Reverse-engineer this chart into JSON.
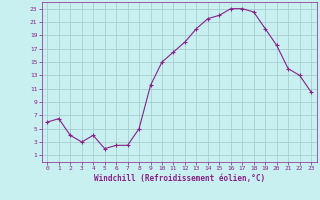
{
  "x": [
    0,
    1,
    2,
    3,
    4,
    5,
    6,
    7,
    8,
    9,
    10,
    11,
    12,
    13,
    14,
    15,
    16,
    17,
    18,
    19,
    20,
    21,
    22,
    23
  ],
  "y": [
    6,
    6.5,
    4,
    3,
    4,
    2,
    2.5,
    2.5,
    5,
    11.5,
    15,
    16.5,
    18,
    20,
    21.5,
    22,
    23,
    23,
    22.5,
    20,
    17.5,
    14,
    13,
    10.5
  ],
  "line_color": "#882288",
  "marker": "+",
  "bg_color": "#c8f0f0",
  "grid_color": "#a0c8c8",
  "xlabel": "Windchill (Refroidissement éolien,°C)",
  "xlabel_color": "#882288",
  "tick_color": "#882288",
  "ylim": [
    0,
    24
  ],
  "xlim": [
    -0.5,
    23.5
  ],
  "yticks": [
    1,
    3,
    5,
    7,
    9,
    11,
    13,
    15,
    17,
    19,
    21,
    23
  ],
  "xticks": [
    0,
    1,
    2,
    3,
    4,
    5,
    6,
    7,
    8,
    9,
    10,
    11,
    12,
    13,
    14,
    15,
    16,
    17,
    18,
    19,
    20,
    21,
    22,
    23
  ],
  "figsize": [
    3.2,
    2.0
  ],
  "dpi": 100
}
